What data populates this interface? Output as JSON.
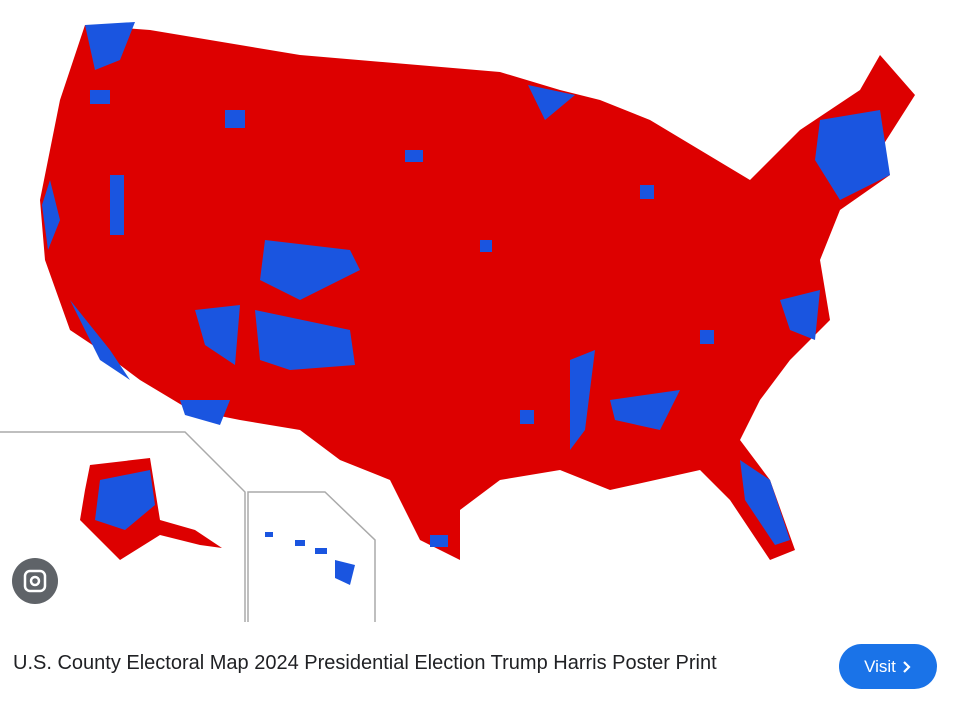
{
  "listing": {
    "title": "U.S. County Electoral Map 2024 Presidential Election Trump Harris Poster Print",
    "action": "Visit"
  }
}
